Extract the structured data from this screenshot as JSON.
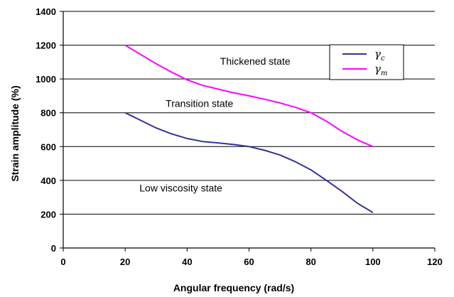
{
  "chart_data": {
    "type": "line",
    "xlabel": "Angular frequency (rad/s)",
    "ylabel": "Strain amplitude (%)",
    "xlim": [
      0,
      120
    ],
    "ylim": [
      0,
      1400
    ],
    "xticks": [
      0,
      20,
      40,
      60,
      80,
      100,
      120
    ],
    "yticks": [
      0,
      200,
      400,
      600,
      800,
      1000,
      1200,
      1400
    ],
    "grid": "horizontal",
    "legend_position": "top-right",
    "series": [
      {
        "name": "γc",
        "legend_symbol": "γ",
        "legend_subscript": "c",
        "color": "#333399",
        "x": [
          20,
          25,
          30,
          35,
          40,
          45,
          50,
          55,
          60,
          65,
          70,
          75,
          80,
          85,
          90,
          95,
          100
        ],
        "y": [
          800,
          755,
          710,
          675,
          648,
          630,
          622,
          612,
          600,
          578,
          550,
          510,
          462,
          400,
          335,
          265,
          210
        ]
      },
      {
        "name": "γm",
        "legend_symbol": "γ",
        "legend_subscript": "m",
        "color": "#ff00ff",
        "x": [
          20,
          25,
          30,
          35,
          40,
          45,
          50,
          55,
          60,
          65,
          70,
          75,
          80,
          85,
          90,
          95,
          100
        ],
        "y": [
          1200,
          1145,
          1090,
          1040,
          995,
          962,
          940,
          918,
          900,
          880,
          858,
          832,
          800,
          750,
          690,
          640,
          600
        ]
      }
    ],
    "annotations": [
      {
        "text": "Thickened state",
        "x": 62,
        "y": 1085
      },
      {
        "text": "Transition state",
        "x": 44,
        "y": 835
      },
      {
        "text": "Low viscosity state",
        "x": 38,
        "y": 335
      }
    ]
  }
}
